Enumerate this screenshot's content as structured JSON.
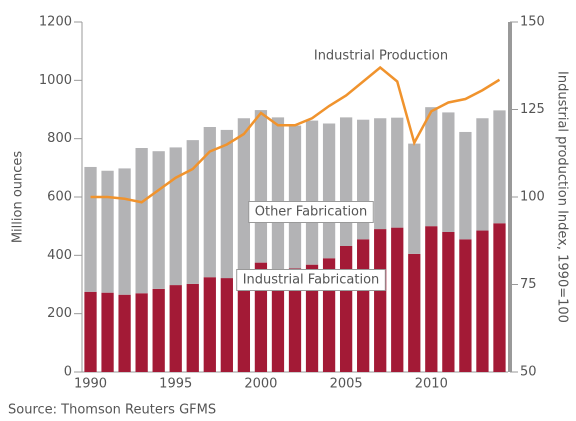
{
  "chart_data": {
    "type": "bar",
    "categories": [
      "1990",
      null,
      null,
      null,
      null,
      "1995",
      null,
      null,
      null,
      null,
      "2000",
      null,
      null,
      null,
      null,
      "2005",
      null,
      null,
      null,
      null,
      "2010",
      null,
      null,
      null,
      null
    ],
    "series": [
      {
        "name": "Industrial Fabrication",
        "color": "#a31a36",
        "values": [
          275,
          272,
          265,
          270,
          285,
          298,
          302,
          325,
          322,
          348,
          375,
          350,
          355,
          368,
          390,
          432,
          455,
          490,
          495,
          405,
          500,
          480,
          455,
          485,
          510
        ]
      },
      {
        "name": "Other Fabrication",
        "color": "#b3b3b5",
        "values": [
          428,
          418,
          433,
          498,
          472,
          472,
          493,
          515,
          508,
          522,
          523,
          523,
          490,
          494,
          462,
          441,
          410,
          380,
          377,
          378,
          408,
          410,
          368,
          385,
          387
        ]
      },
      {
        "name": "Industrial Production",
        "color": "#f0932d",
        "axis": "y2",
        "values": [
          100,
          100,
          99.5,
          98.5,
          102,
          105.5,
          108,
          113,
          115,
          118,
          124,
          120.5,
          120.5,
          122.5,
          126,
          129,
          133,
          137,
          133,
          115.5,
          124.5,
          127,
          128,
          130.5,
          133.5
        ]
      }
    ],
    "ylabel": "Million ounces",
    "y2label": "Industrial production Index, 1990=100",
    "ylim": [
      0,
      1200
    ],
    "yticks": [
      0,
      200,
      400,
      600,
      800,
      1000,
      1200
    ],
    "y2lim": [
      50,
      150
    ],
    "y2ticks": [
      50,
      75,
      100,
      125,
      150
    ],
    "source": "Source: Thomson Reuters GFMS"
  }
}
